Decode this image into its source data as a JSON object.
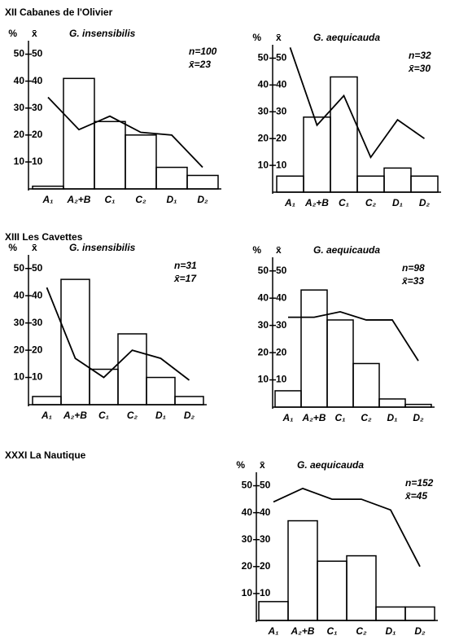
{
  "sections": [
    {
      "title": "XII Cabanes de l'Olivier"
    },
    {
      "title": "XIII Les Cavettes"
    },
    {
      "title": "XXXI La Nautique"
    }
  ],
  "chart_data": [
    {
      "type": "bar",
      "title": "G. insensibilis",
      "annotations": [
        "n=100",
        "x̄=23"
      ],
      "ylabel": "%",
      "y2label": "x̄",
      "categories": [
        "A₁",
        "A₂+B",
        "C₁",
        "C₂",
        "D₁",
        "D₂"
      ],
      "series": [
        {
          "type": "bar",
          "color": "#000000",
          "values": [
            1,
            41,
            25,
            20,
            8,
            5
          ]
        },
        {
          "type": "line",
          "axis": "y2",
          "color": "#000000",
          "values": [
            34,
            22,
            27,
            21,
            20,
            8
          ]
        }
      ],
      "ylim": [
        0,
        55
      ],
      "yticks": [
        10,
        20,
        30,
        40,
        50
      ],
      "y2lim": [
        0,
        55
      ],
      "y2ticks": [
        10,
        20,
        30,
        40,
        50
      ]
    },
    {
      "type": "bar",
      "title": "G. aequicauda",
      "annotations": [
        "n=32",
        "x̄=30"
      ],
      "ylabel": "%",
      "y2label": "x̄",
      "categories": [
        "A₁",
        "A₂+B",
        "C₁",
        "C₂",
        "D₁",
        "D₂"
      ],
      "series": [
        {
          "type": "bar",
          "color": "#000000",
          "values": [
            6,
            28,
            43,
            6,
            9,
            6
          ]
        },
        {
          "type": "line",
          "axis": "y2",
          "color": "#000000",
          "values": [
            54,
            25,
            36,
            13,
            27,
            20
          ]
        }
      ],
      "ylim": [
        0,
        55
      ],
      "yticks": [
        10,
        20,
        30,
        40,
        50
      ],
      "y2lim": [
        0,
        55
      ],
      "y2ticks": [
        10,
        20,
        30,
        40,
        50
      ]
    },
    {
      "type": "bar",
      "title": "G. insensibilis",
      "annotations": [
        "n=31",
        "x̄=17"
      ],
      "ylabel": "%",
      "y2label": "x̄",
      "categories": [
        "A₁",
        "A₂+B",
        "C₁",
        "C₂",
        "D₁",
        "D₂"
      ],
      "series": [
        {
          "type": "bar",
          "color": "#000000",
          "values": [
            3,
            46,
            13,
            26,
            10,
            3
          ]
        },
        {
          "type": "line",
          "axis": "y2",
          "color": "#000000",
          "values": [
            43,
            17,
            10,
            20,
            17,
            9
          ]
        }
      ],
      "ylim": [
        0,
        55
      ],
      "yticks": [
        10,
        20,
        30,
        40,
        50
      ],
      "y2lim": [
        0,
        55
      ],
      "y2ticks": [
        10,
        20,
        30,
        40,
        50
      ]
    },
    {
      "type": "bar",
      "title": "G. aequicauda",
      "annotations": [
        "n=98",
        "x̄=33"
      ],
      "ylabel": "%",
      "y2label": "x̄",
      "categories": [
        "A₁",
        "A₂+B",
        "C₁",
        "C₂",
        "D₁",
        "D₂"
      ],
      "series": [
        {
          "type": "bar",
          "color": "#000000",
          "values": [
            6,
            43,
            32,
            16,
            3,
            1
          ]
        },
        {
          "type": "line",
          "axis": "y2",
          "color": "#000000",
          "values": [
            33,
            33,
            35,
            32,
            32,
            17
          ]
        }
      ],
      "ylim": [
        0,
        55
      ],
      "yticks": [
        10,
        20,
        30,
        40,
        50
      ],
      "y2lim": [
        0,
        55
      ],
      "y2ticks": [
        10,
        20,
        30,
        40,
        50
      ]
    },
    {
      "type": "bar",
      "title": "G. aequicauda",
      "annotations": [
        "n=152",
        "x̄=45"
      ],
      "ylabel": "%",
      "y2label": "x̄",
      "categories": [
        "A₁",
        "A₂+B",
        "C₁",
        "C₂",
        "D₁",
        "D₂"
      ],
      "series": [
        {
          "type": "bar",
          "color": "#000000",
          "values": [
            7,
            37,
            22,
            24,
            5,
            5
          ]
        },
        {
          "type": "line",
          "axis": "y2",
          "color": "#000000",
          "values": [
            44,
            49,
            45,
            45,
            41,
            20
          ]
        }
      ],
      "ylim": [
        0,
        55
      ],
      "yticks": [
        10,
        20,
        30,
        40,
        50
      ],
      "y2lim": [
        0,
        55
      ],
      "y2ticks": [
        10,
        20,
        30,
        40,
        50
      ]
    }
  ]
}
